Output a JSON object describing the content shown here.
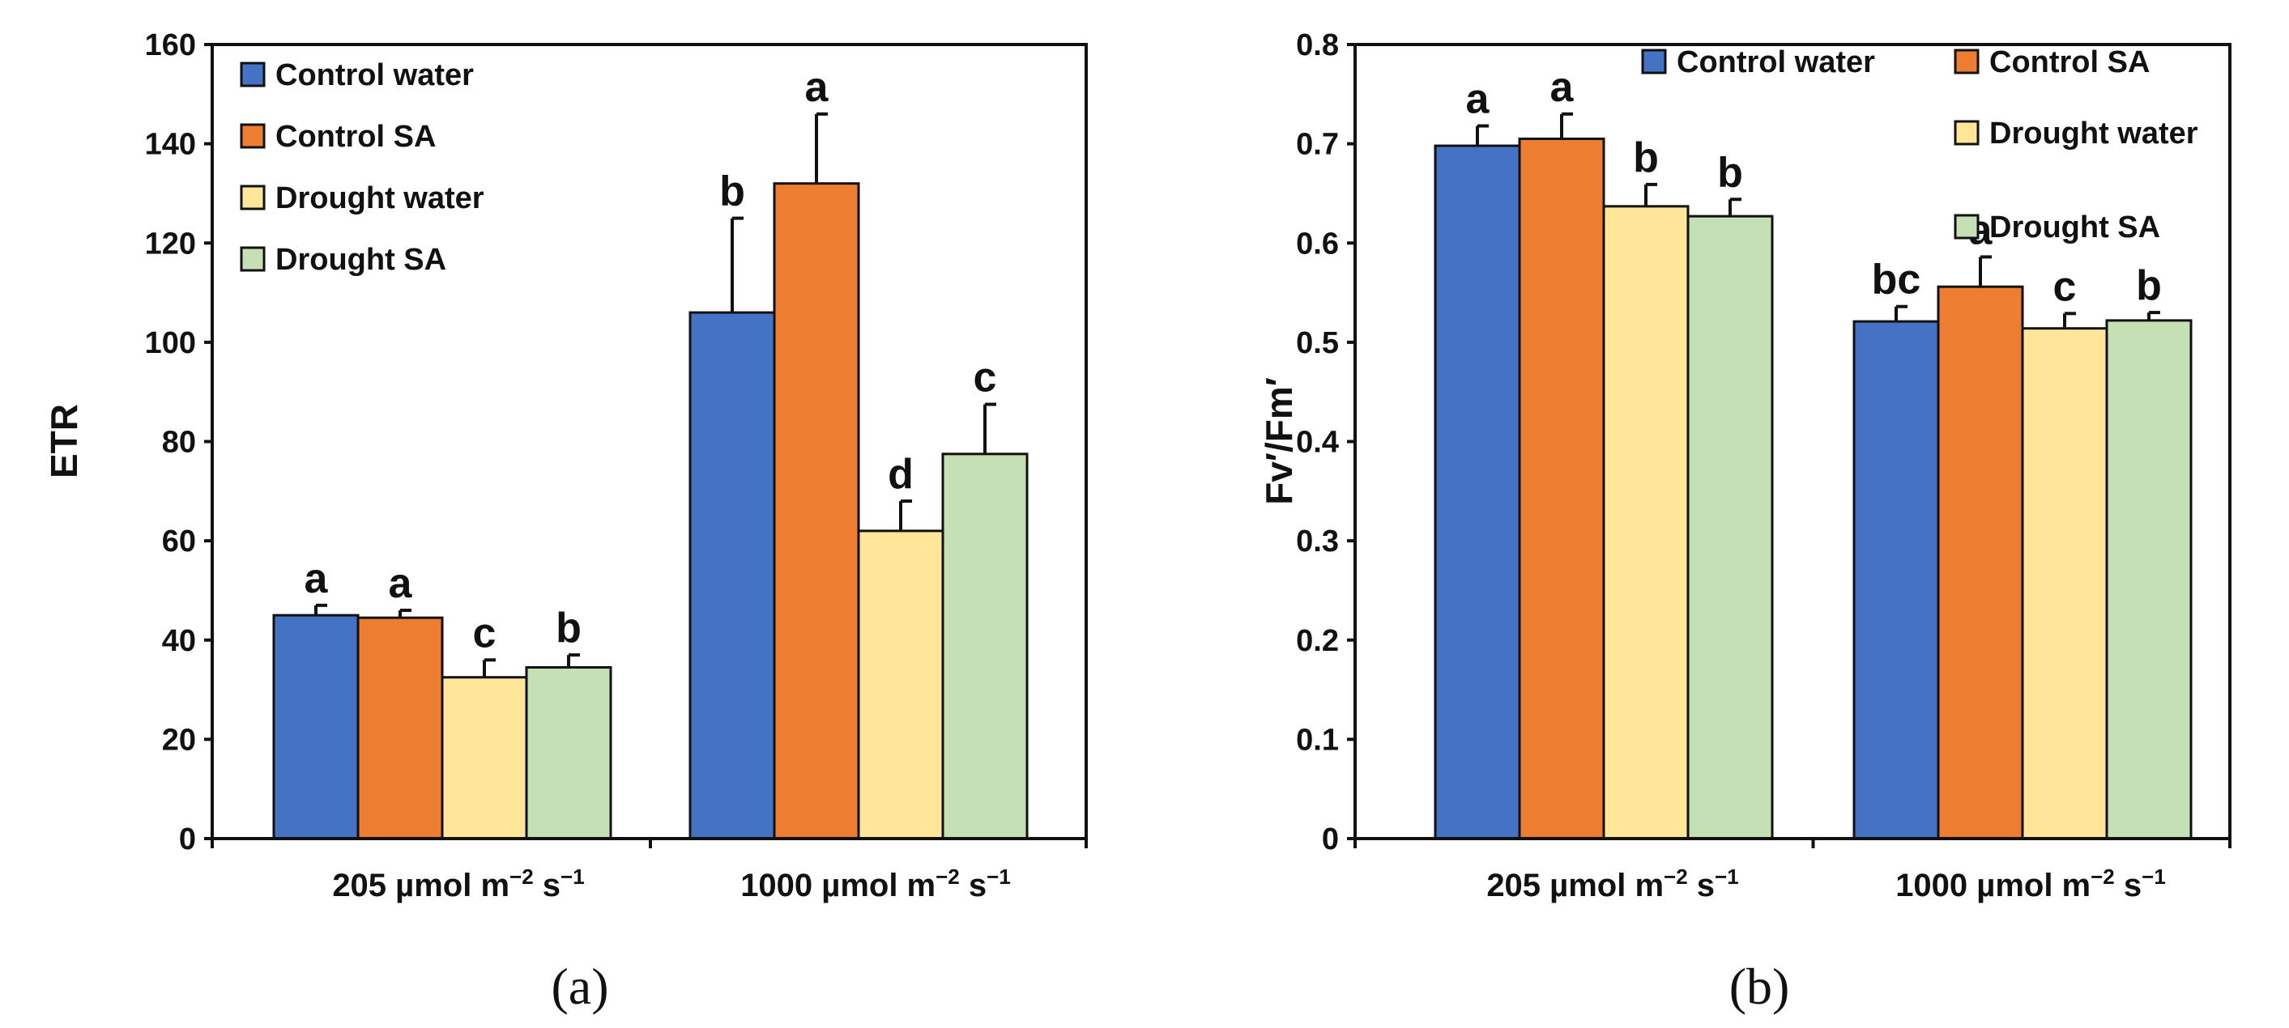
{
  "colors": {
    "Control water": "#4472c4",
    "Control SA": "#ed7d31",
    "Drought water": "#ffe699",
    "Drought SA": "#c5e0b4"
  },
  "chart_data": [
    {
      "type": "bar",
      "panel_label": "(a)",
      "ylabel": "ETR",
      "ylim": [
        0,
        160
      ],
      "yticks": [
        "0",
        "20",
        "40",
        "60",
        "80",
        "100",
        "120",
        "140",
        "160"
      ],
      "category_labels": [
        {
          "main": "205 µmol m",
          "exp1": "−2",
          "mid": " s",
          "exp2": "−1"
        },
        {
          "main": "1000 µmol m",
          "exp1": "−2",
          "mid": " s",
          "exp2": "−1"
        }
      ],
      "legend": [
        "Control water",
        "Control SA",
        "Drought water",
        "Drought SA"
      ],
      "legend_position": "top-left",
      "series": [
        {
          "name": "Control water",
          "values": [
            45,
            106
          ],
          "errors": [
            2,
            19
          ],
          "letters": [
            "a",
            "b"
          ]
        },
        {
          "name": "Control SA",
          "values": [
            44.5,
            132
          ],
          "errors": [
            1.5,
            14
          ],
          "letters": [
            "a",
            "a"
          ]
        },
        {
          "name": "Drought water",
          "values": [
            32.5,
            62
          ],
          "errors": [
            3.5,
            6
          ],
          "letters": [
            "c",
            "d"
          ]
        },
        {
          "name": "Drought SA",
          "values": [
            34.5,
            77.5
          ],
          "errors": [
            2.5,
            10
          ],
          "letters": [
            "b",
            "c"
          ]
        }
      ]
    },
    {
      "type": "bar",
      "panel_label": "(b)",
      "ylabel": "Fv′/Fm′",
      "ylim": [
        0,
        0.8
      ],
      "yticks": [
        "0",
        "0.1",
        "0.2",
        "0.3",
        "0.4",
        "0.5",
        "0.6",
        "0.7",
        "0.8"
      ],
      "category_labels": [
        {
          "main": "205 µmol m",
          "exp1": "−2",
          "mid": " s",
          "exp2": "−1"
        },
        {
          "main": "1000 µmol m",
          "exp1": "−2",
          "mid": " s",
          "exp2": "−1"
        }
      ],
      "legend": [
        "Control water",
        "Control SA",
        "Drought water",
        "Drought SA"
      ],
      "legend_position": "top-right",
      "series": [
        {
          "name": "Control water",
          "values": [
            0.698,
            0.521
          ],
          "errors": [
            0.02,
            0.015
          ],
          "letters": [
            "a",
            "bc"
          ]
        },
        {
          "name": "Control SA",
          "values": [
            0.705,
            0.556
          ],
          "errors": [
            0.025,
            0.03
          ],
          "letters": [
            "a",
            "a"
          ]
        },
        {
          "name": "Drought water",
          "values": [
            0.637,
            0.514
          ],
          "errors": [
            0.022,
            0.015
          ],
          "letters": [
            "b",
            "c"
          ]
        },
        {
          "name": "Drought SA",
          "values": [
            0.627,
            0.522
          ],
          "errors": [
            0.017,
            0.008
          ],
          "letters": [
            "b",
            "b"
          ]
        }
      ]
    }
  ]
}
